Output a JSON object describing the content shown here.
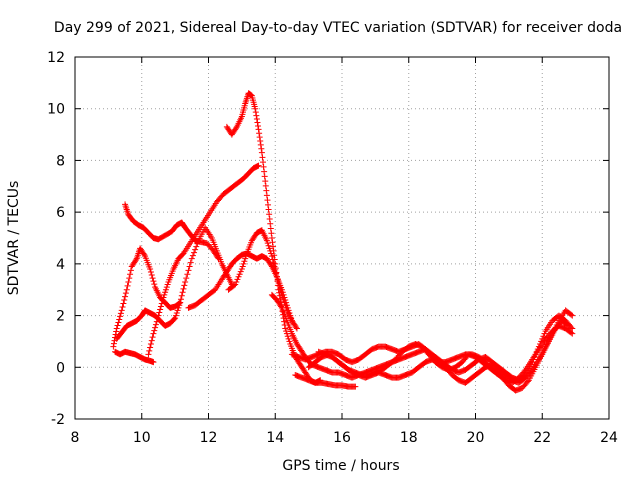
{
  "chart_data": {
    "type": "scatter",
    "title": "Day 299 of 2021, Sidereal Day-to-day VTEC variation (SDTVAR) for receiver doda",
    "xlabel": "GPS time / hours",
    "ylabel": "SDTVAR / TECUs",
    "xlim": [
      8,
      24
    ],
    "ylim": [
      -2,
      12
    ],
    "xticks": [
      8,
      10,
      12,
      14,
      16,
      18,
      20,
      22,
      24
    ],
    "yticks": [
      -2,
      0,
      2,
      4,
      6,
      8,
      10,
      12
    ],
    "grid": true,
    "marker": "+",
    "color": "#ff0000",
    "series": [
      {
        "x": [
          9.5,
          9.6,
          9.75,
          9.9,
          10.05,
          10.2,
          10.35,
          10.5,
          10.7,
          10.9,
          11.05,
          11.2,
          11.3,
          11.45,
          11.6,
          11.75,
          11.95,
          12.15,
          12.3
        ],
        "y": [
          6.3,
          5.9,
          5.65,
          5.5,
          5.4,
          5.2,
          5.0,
          4.95,
          5.1,
          5.25,
          5.5,
          5.6,
          5.4,
          5.15,
          4.9,
          4.85,
          4.8,
          4.5,
          4.2
        ]
      },
      {
        "x": [
          9.15,
          9.25,
          9.4,
          9.55,
          9.7,
          9.85,
          9.95,
          10.1,
          10.25,
          10.4,
          10.55,
          10.7,
          10.85,
          11.0,
          11.15,
          11.3,
          11.5,
          11.7,
          11.9,
          12.1,
          12.25,
          12.4,
          12.55,
          12.7
        ],
        "y": [
          0.8,
          1.5,
          2.2,
          3.0,
          3.9,
          4.2,
          4.6,
          4.3,
          3.8,
          3.1,
          2.7,
          2.5,
          2.3,
          2.35,
          2.5,
          3.3,
          4.2,
          4.9,
          5.4,
          5.0,
          4.5,
          4.0,
          3.6,
          3.2
        ]
      },
      {
        "x": [
          9.2,
          9.35,
          9.5,
          9.65,
          9.8,
          9.95,
          10.1,
          10.25,
          10.35
        ],
        "y": [
          0.6,
          0.5,
          0.6,
          0.55,
          0.5,
          0.4,
          0.3,
          0.25,
          0.2
        ]
      },
      {
        "x": [
          9.25,
          9.4,
          9.55,
          9.7,
          9.85,
          10.0,
          10.1,
          10.25,
          10.4,
          10.55,
          10.7,
          10.85,
          11.0,
          11.15
        ],
        "y": [
          1.1,
          1.35,
          1.6,
          1.7,
          1.8,
          2.0,
          2.2,
          2.1,
          2.0,
          1.8,
          1.6,
          1.7,
          1.9,
          2.5
        ]
      },
      {
        "x": [
          10.2,
          10.35,
          10.5,
          10.65,
          10.8,
          10.95,
          11.1,
          11.25,
          11.45,
          11.65,
          11.85,
          12.05,
          12.25,
          12.45,
          12.65,
          12.85,
          13.05,
          13.2,
          13.35,
          13.5
        ],
        "y": [
          0.5,
          1.3,
          2.0,
          2.7,
          3.3,
          3.8,
          4.2,
          4.4,
          4.8,
          5.2,
          5.6,
          6.0,
          6.4,
          6.7,
          6.9,
          7.1,
          7.3,
          7.5,
          7.7,
          7.8
        ]
      },
      {
        "x": [
          11.4,
          11.6,
          11.8,
          12.0,
          12.2,
          12.4,
          12.55,
          12.7,
          12.85,
          13.0,
          13.15,
          13.3,
          13.45,
          13.6,
          13.75,
          13.9,
          14.05,
          14.2,
          14.35,
          14.5
        ],
        "y": [
          2.3,
          2.4,
          2.6,
          2.8,
          3.0,
          3.4,
          3.7,
          4.0,
          4.2,
          4.35,
          4.4,
          4.3,
          4.2,
          4.3,
          4.2,
          3.9,
          3.5,
          3.0,
          2.4,
          1.8
        ]
      },
      {
        "x": [
          12.55,
          12.7,
          12.85,
          13.0,
          13.1,
          13.2,
          13.3,
          13.4,
          13.5,
          13.6,
          13.7,
          13.8,
          13.9,
          14.0,
          14.1,
          14.2,
          14.3,
          14.45,
          14.6,
          14.75,
          14.9,
          15.05,
          15.2,
          15.35
        ],
        "y": [
          9.3,
          9.0,
          9.3,
          9.7,
          10.2,
          10.6,
          10.5,
          10.0,
          9.2,
          8.3,
          7.2,
          6.1,
          5.0,
          4.0,
          3.0,
          2.3,
          1.5,
          0.9,
          0.4,
          0.1,
          -0.2,
          -0.5,
          -0.6,
          -0.5
        ]
      },
      {
        "x": [
          12.6,
          12.8,
          13.0,
          13.15,
          13.3,
          13.45,
          13.6,
          13.75,
          13.9,
          14.05,
          14.2,
          14.35,
          14.5,
          14.65
        ],
        "y": [
          3.0,
          3.2,
          3.8,
          4.4,
          4.9,
          5.2,
          5.3,
          4.9,
          4.3,
          3.5,
          2.8,
          2.2,
          1.8,
          1.5
        ]
      },
      {
        "x": [
          13.9,
          14.05,
          14.2,
          14.35,
          14.5,
          14.65,
          14.8,
          14.95,
          15.1,
          15.3,
          15.5,
          15.7,
          15.9,
          16.1,
          16.3,
          16.5,
          16.7,
          16.9,
          17.1,
          17.3,
          17.5,
          17.7,
          17.9,
          18.1,
          18.3,
          18.5,
          18.7,
          18.9,
          19.1,
          19.3,
          19.5,
          19.7,
          19.9,
          20.1,
          20.3,
          20.5,
          20.7,
          20.9,
          21.1,
          21.3,
          21.5,
          21.7,
          21.9,
          22.1,
          22.3,
          22.5,
          22.7,
          22.9
        ],
        "y": [
          2.8,
          2.6,
          2.3,
          1.8,
          1.3,
          0.9,
          0.6,
          0.3,
          0.1,
          0.0,
          -0.1,
          -0.2,
          -0.2,
          -0.3,
          -0.4,
          -0.3,
          -0.2,
          -0.1,
          0.0,
          0.1,
          0.2,
          0.3,
          0.4,
          0.5,
          0.6,
          0.7,
          0.5,
          0.3,
          0.1,
          -0.1,
          -0.2,
          -0.1,
          0.1,
          0.3,
          0.4,
          0.2,
          0.0,
          -0.2,
          -0.4,
          -0.5,
          -0.3,
          0.2,
          0.8,
          1.4,
          1.8,
          2.0,
          1.8,
          1.5
        ]
      },
      {
        "x": [
          14.6,
          14.8,
          15.0,
          15.2,
          15.4,
          15.6,
          15.8,
          16.0,
          16.2,
          16.4
        ],
        "y": [
          -0.3,
          -0.4,
          -0.5,
          -0.6,
          -0.6,
          -0.65,
          -0.7,
          -0.7,
          -0.75,
          -0.75
        ]
      },
      {
        "x": [
          14.5,
          14.7,
          14.9,
          15.1,
          15.3,
          15.5,
          15.7,
          15.9,
          16.1,
          16.3,
          16.5,
          16.7,
          16.9,
          17.1,
          17.3,
          17.5,
          17.7,
          17.9,
          18.1,
          18.3,
          18.5,
          18.7,
          18.9,
          19.1,
          19.3,
          19.5,
          19.7,
          19.9,
          20.1,
          20.3,
          20.5,
          20.7,
          20.9,
          21.1,
          21.3,
          21.5,
          21.7,
          21.9,
          22.1,
          22.3,
          22.5,
          22.7,
          22.9
        ],
        "y": [
          0.5,
          0.4,
          0.3,
          0.4,
          0.5,
          0.6,
          0.6,
          0.5,
          0.3,
          0.2,
          0.3,
          0.5,
          0.7,
          0.8,
          0.8,
          0.7,
          0.6,
          0.7,
          0.8,
          0.9,
          0.7,
          0.4,
          0.2,
          0.2,
          0.3,
          0.4,
          0.5,
          0.5,
          0.4,
          0.2,
          -0.1,
          -0.3,
          -0.5,
          -0.6,
          -0.4,
          -0.1,
          0.3,
          0.7,
          1.1,
          1.4,
          1.6,
          1.5,
          1.3
        ]
      },
      {
        "x": [
          15.0,
          15.2,
          15.4,
          15.6,
          15.8,
          16.0,
          16.2,
          16.4,
          16.6,
          16.8,
          17.0,
          17.2,
          17.4,
          17.6,
          17.8,
          18.0,
          18.2,
          18.4,
          18.6,
          18.8,
          19.0,
          19.2,
          19.4,
          19.6,
          19.8,
          20.0,
          20.2,
          20.4,
          20.6,
          20.8,
          21.0,
          21.2,
          21.4,
          21.6,
          21.8,
          22.0,
          22.2,
          22.4,
          22.6,
          22.8
        ],
        "y": [
          0.0,
          0.2,
          0.4,
          0.5,
          0.3,
          0.1,
          -0.1,
          -0.2,
          -0.3,
          -0.3,
          -0.2,
          -0.1,
          0.1,
          0.3,
          0.6,
          0.8,
          0.9,
          0.8,
          0.5,
          0.2,
          0.0,
          -0.1,
          0.0,
          0.2,
          0.5,
          0.4,
          0.2,
          0.0,
          -0.2,
          -0.4,
          -0.7,
          -0.9,
          -0.8,
          -0.5,
          0.0,
          0.5,
          1.0,
          1.5,
          1.8,
          1.6
        ]
      },
      {
        "x": [
          15.3,
          15.5,
          15.7,
          15.9,
          16.1,
          16.3,
          16.5,
          16.7,
          16.9,
          17.1,
          17.3,
          17.5,
          17.7,
          17.9,
          18.1,
          18.3,
          18.5,
          18.7,
          18.9,
          19.1,
          19.3,
          19.5,
          19.7,
          19.9,
          20.1,
          20.3,
          20.5,
          20.7,
          20.9,
          21.1,
          21.3,
          21.5,
          21.7,
          21.9,
          22.1,
          22.3,
          22.5,
          22.7,
          22.9
        ],
        "y": [
          0.6,
          0.5,
          0.4,
          0.2,
          0.0,
          -0.2,
          -0.3,
          -0.4,
          -0.3,
          -0.2,
          -0.3,
          -0.4,
          -0.4,
          -0.3,
          -0.2,
          0.0,
          0.2,
          0.3,
          0.2,
          0.0,
          -0.3,
          -0.5,
          -0.6,
          -0.4,
          -0.2,
          0.0,
          0.1,
          -0.1,
          -0.3,
          -0.5,
          -0.6,
          -0.4,
          -0.1,
          0.3,
          0.8,
          1.3,
          1.8,
          2.2,
          2.0
        ]
      }
    ]
  }
}
